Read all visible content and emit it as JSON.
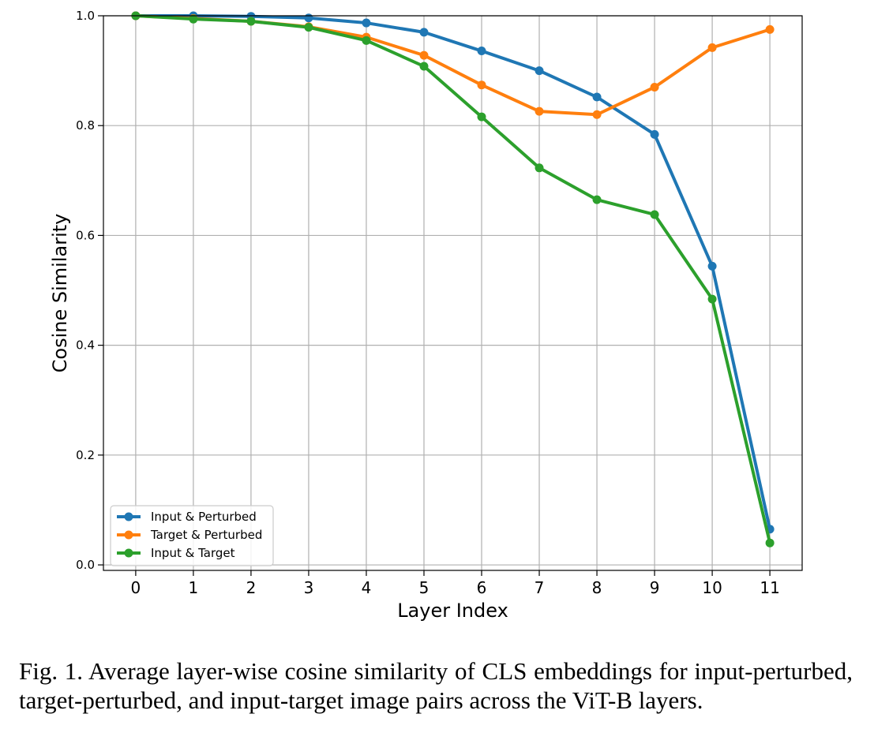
{
  "chart_data": {
    "type": "line",
    "x": [
      0,
      1,
      2,
      3,
      4,
      5,
      6,
      7,
      8,
      9,
      10,
      11
    ],
    "xlabel": "Layer Index",
    "ylabel": "Cosine Similarity",
    "xlim": [
      -0.56,
      11.56
    ],
    "ylim": [
      -0.01,
      1.0
    ],
    "yticks": [
      "0.0",
      "0.2",
      "0.4",
      "0.6",
      "0.8",
      "1.0"
    ],
    "ytick_values": [
      0.0,
      0.2,
      0.4,
      0.6,
      0.8,
      1.0
    ],
    "xticks": [
      "0",
      "1",
      "2",
      "3",
      "4",
      "5",
      "6",
      "7",
      "8",
      "9",
      "10",
      "11"
    ],
    "grid": true,
    "legend_position": "lower-left",
    "series": [
      {
        "name": "Input & Perturbed",
        "color": "#1f77b4",
        "values": [
          1.0,
          1.0,
          0.999,
          0.996,
          0.987,
          0.97,
          0.936,
          0.9,
          0.852,
          0.784,
          0.544,
          0.065
        ]
      },
      {
        "name": "Target & Perturbed",
        "color": "#ff7f0e",
        "values": [
          1.0,
          0.995,
          0.99,
          0.98,
          0.961,
          0.928,
          0.874,
          0.826,
          0.82,
          0.87,
          0.942,
          0.975
        ]
      },
      {
        "name": "Input & Target",
        "color": "#2ca02c",
        "values": [
          1.0,
          0.994,
          0.99,
          0.979,
          0.955,
          0.908,
          0.816,
          0.723,
          0.665,
          0.638,
          0.484,
          0.04
        ]
      }
    ]
  },
  "caption": {
    "text": "Fig. 1.  Average layer-wise cosine similarity of CLS embeddings for input-perturbed, target-perturbed, and input-target image pairs across the ViT-B layers."
  }
}
